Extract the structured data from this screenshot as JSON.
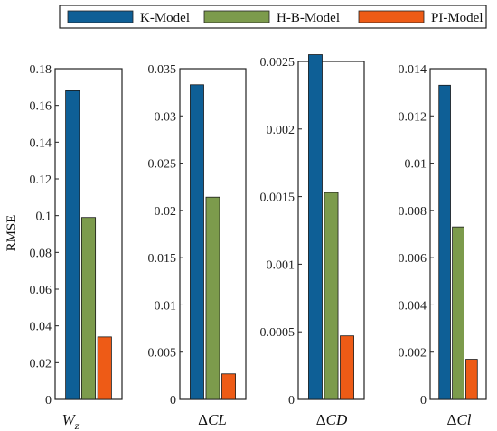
{
  "colors": {
    "k_model": "#0e5f96",
    "hb_model": "#7c9b4c",
    "pi_model": "#ee5b16",
    "frame": "#222222"
  },
  "legend": {
    "position": "top",
    "entries": [
      "K-Model",
      "H-B-Model",
      "PI-Model"
    ]
  },
  "chart_data": [
    {
      "type": "bar",
      "xlabel_main": "W",
      "xlabel_sub": "z",
      "ylabel": "RMSE",
      "ylim": [
        0,
        0.18
      ],
      "ticks": [
        0,
        0.02,
        0.04,
        0.06,
        0.08,
        0.1,
        0.12,
        0.14,
        0.16,
        0.18
      ],
      "tick_labels": [
        "0",
        "0.02",
        "0.04",
        "0.06",
        "0.08",
        "0.1",
        "0.12",
        "0.14",
        "0.16",
        "0.18"
      ],
      "series": [
        {
          "name": "K-Model",
          "values": [
            0.168
          ]
        },
        {
          "name": "H-B-Model",
          "values": [
            0.099
          ]
        },
        {
          "name": "PI-Model",
          "values": [
            0.034
          ]
        }
      ]
    },
    {
      "type": "bar",
      "xlabel_prefix": "Δ",
      "xlabel_main": "CL",
      "ylabel": "",
      "ylim": [
        0,
        0.035
      ],
      "ticks": [
        0,
        0.005,
        0.01,
        0.015,
        0.02,
        0.025,
        0.03,
        0.035
      ],
      "tick_labels": [
        "0",
        "0.005",
        "0.01",
        "0.015",
        "0.02",
        "0.025",
        "0.03",
        "0.035"
      ],
      "series": [
        {
          "name": "K-Model",
          "values": [
            0.0333
          ]
        },
        {
          "name": "H-B-Model",
          "values": [
            0.0214
          ]
        },
        {
          "name": "PI-Model",
          "values": [
            0.0027
          ]
        }
      ]
    },
    {
      "type": "bar",
      "xlabel_prefix": "Δ",
      "xlabel_main": "CD",
      "ylabel": "",
      "ylim": [
        0,
        0.0025
      ],
      "ticks": [
        0,
        0.0005,
        0.001,
        0.0015,
        0.002,
        0.0025
      ],
      "tick_labels": [
        "0",
        "0.0005",
        "0.001",
        "0.0015",
        "0.002",
        "0.0025"
      ],
      "series": [
        {
          "name": "K-Model",
          "values": [
            0.00255
          ]
        },
        {
          "name": "H-B-Model",
          "values": [
            0.00153
          ]
        },
        {
          "name": "PI-Model",
          "values": [
            0.00047
          ]
        }
      ]
    },
    {
      "type": "bar",
      "xlabel_prefix": "Δ",
      "xlabel_main": "Cl",
      "ylabel": "",
      "ylim": [
        0,
        0.014
      ],
      "ticks": [
        0,
        0.002,
        0.004,
        0.006,
        0.008,
        0.01,
        0.012,
        0.014
      ],
      "tick_labels": [
        "0",
        "0.002",
        "0.004",
        "0.006",
        "0.008",
        "0.01",
        "0.012",
        "0.014"
      ],
      "series": [
        {
          "name": "K-Model",
          "values": [
            0.0133
          ]
        },
        {
          "name": "H-B-Model",
          "values": [
            0.0073
          ]
        },
        {
          "name": "PI-Model",
          "values": [
            0.0017
          ]
        }
      ]
    }
  ]
}
